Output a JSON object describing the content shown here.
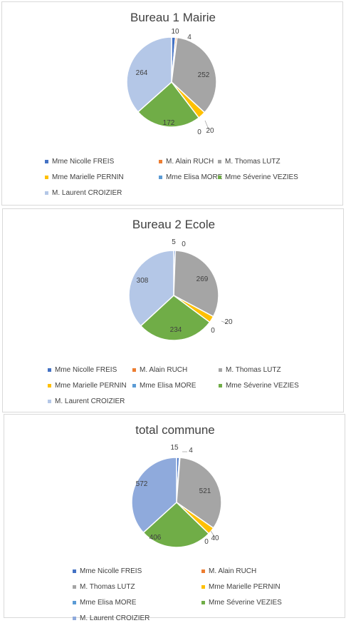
{
  "chart_data": [
    {
      "type": "pie",
      "title": "Bureau 1 Mairie",
      "categories": [
        "Mme Nicolle FREIS",
        "M. Alain RUCH",
        "M. Thomas LUTZ",
        "Mme Marielle PERNIN",
        "Mme Elisa MORE",
        "Mme Séverine VEZIES",
        "M. Laurent CROIZIER"
      ],
      "values": [
        10,
        4,
        252,
        20,
        0,
        172,
        264
      ],
      "labels": [
        "10",
        "4",
        "252",
        "20",
        "0",
        "172",
        "264"
      ],
      "colors": [
        "#4472C4",
        "#ED7D31",
        "#A5A5A5",
        "#FFC000",
        "#5B9BD5",
        "#70AD47",
        "#B4C7E7"
      ],
      "legend": "bottom"
    },
    {
      "type": "pie",
      "title": "Bureau 2 Ecole",
      "categories": [
        "Mme Nicolle FREIS",
        "M. Alain RUCH",
        "M. Thomas LUTZ",
        "Mme Marielle PERNIN",
        "Mme Elisa MORE",
        "Mme Séverine VEZIES",
        "M. Laurent CROIZIER"
      ],
      "values": [
        5,
        0,
        269,
        20,
        0,
        234,
        308
      ],
      "labels": [
        "5",
        "0",
        "269",
        "20",
        "0",
        "234",
        "308"
      ],
      "colors": [
        "#4472C4",
        "#ED7D31",
        "#A5A5A5",
        "#FFC000",
        "#5B9BD5",
        "#70AD47",
        "#B4C7E7"
      ],
      "legend": "bottom"
    },
    {
      "type": "pie",
      "title": "total commune",
      "categories": [
        "Mme Nicolle FREIS",
        "M. Alain RUCH",
        "M. Thomas LUTZ",
        "Mme Marielle PERNIN",
        "Mme Elisa MORE",
        "Mme Séverine VEZIES",
        "M. Laurent CROIZIER"
      ],
      "values": [
        15,
        4,
        521,
        40,
        0,
        406,
        572
      ],
      "labels": [
        "15",
        "4",
        "521",
        "40",
        "0",
        "406",
        "572"
      ],
      "colors": [
        "#4472C4",
        "#ED7D31",
        "#A5A5A5",
        "#FFC000",
        "#5B9BD5",
        "#70AD47",
        "#8FAADC"
      ],
      "legend": "bottom"
    }
  ]
}
